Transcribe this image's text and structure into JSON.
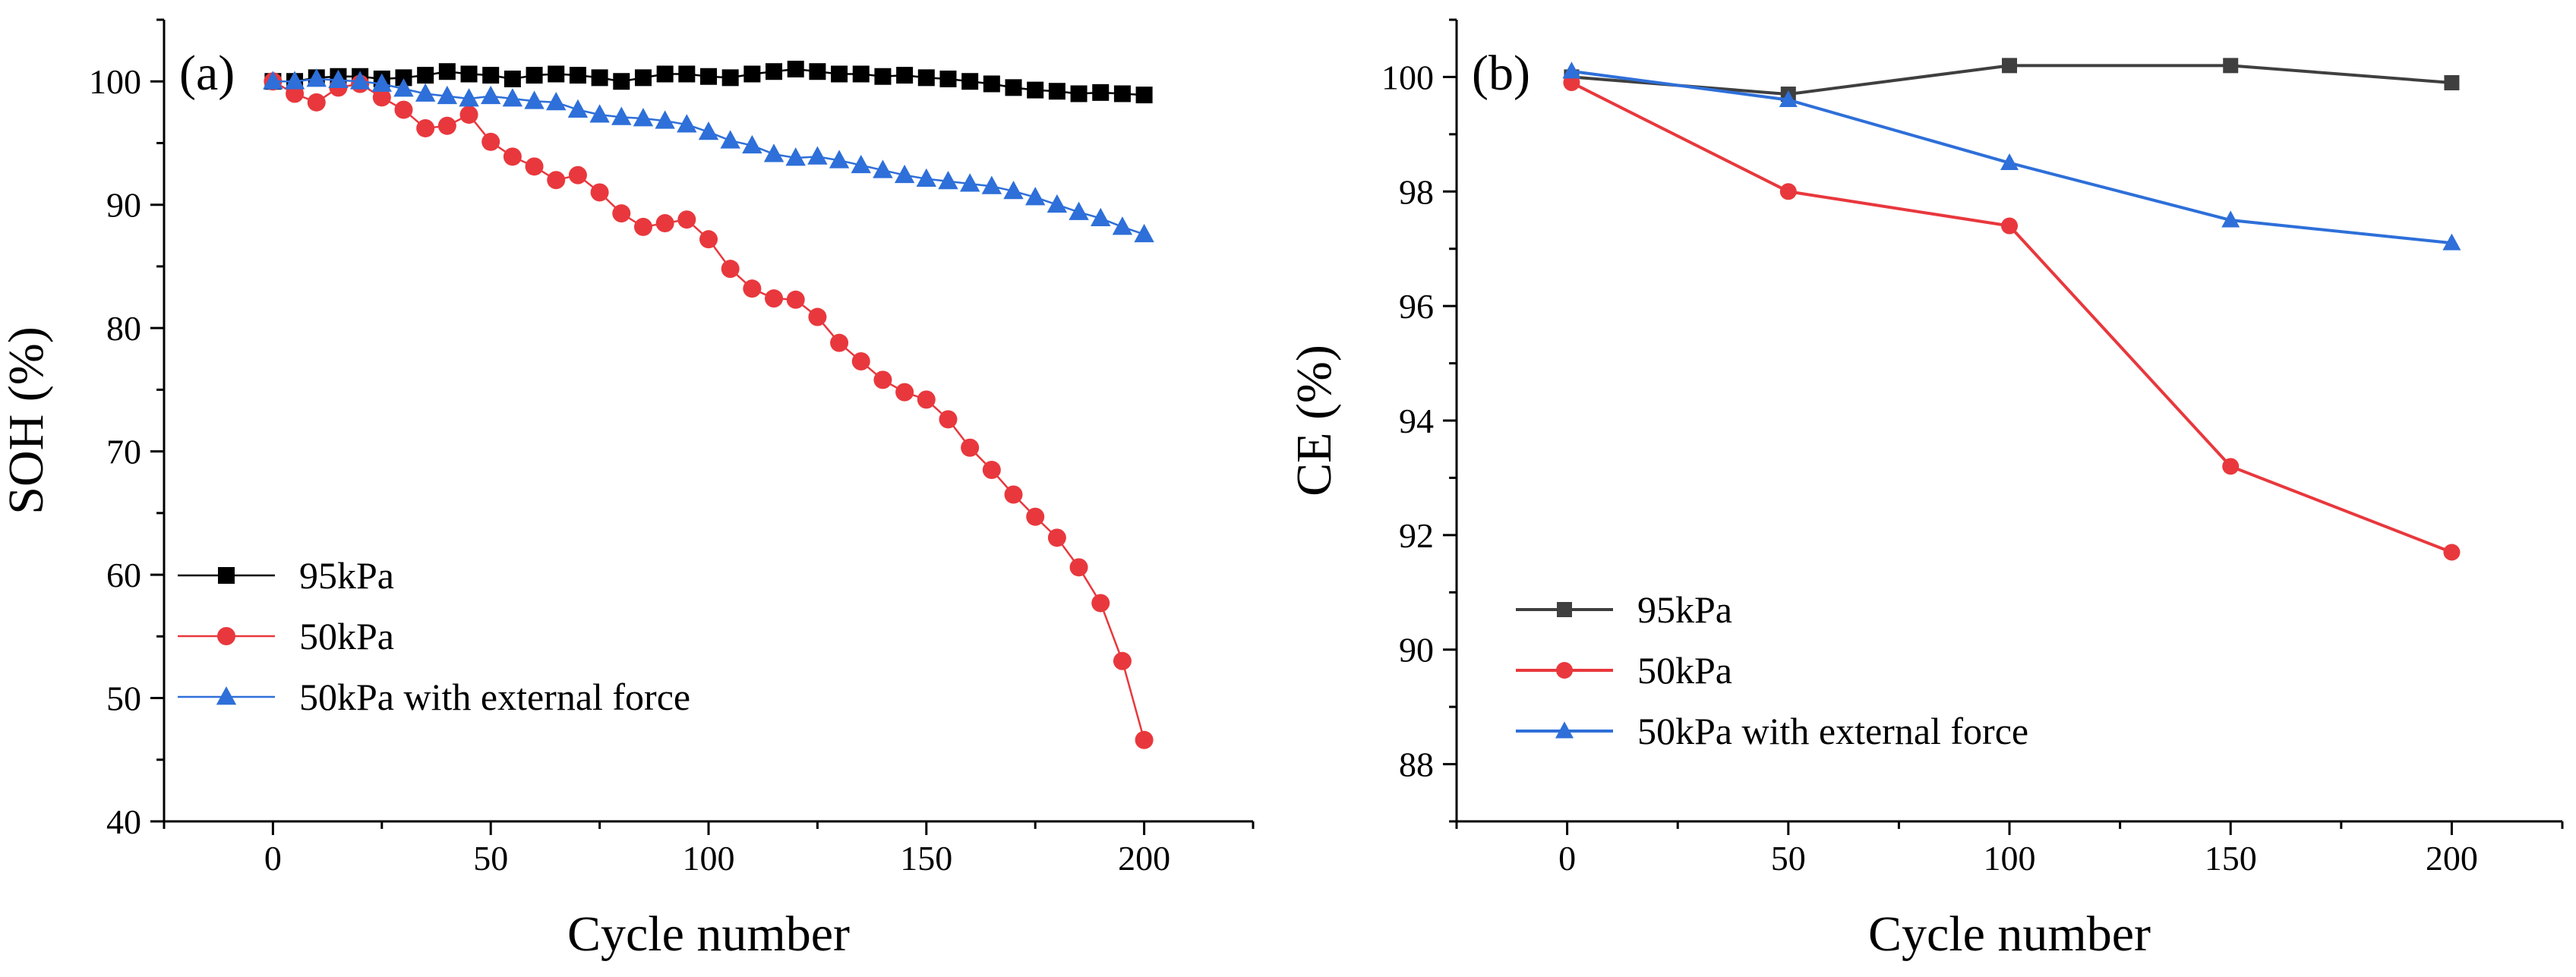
{
  "chart_data": [
    {
      "type": "line",
      "panel_label": "(a)",
      "title": "",
      "xlabel": "Cycle number",
      "ylabel": "SOH (%)",
      "xlim": [
        -25,
        225
      ],
      "ylim": [
        40,
        105
      ],
      "xticks": [
        0,
        50,
        100,
        150,
        200
      ],
      "yticks": [
        40,
        50,
        60,
        70,
        80,
        90,
        100
      ],
      "grid": false,
      "legend_position": "bottom-left",
      "series": [
        {
          "name": "95kPa",
          "color": "#000000",
          "marker": "square",
          "x": [
            0,
            5,
            10,
            15,
            20,
            25,
            30,
            35,
            40,
            45,
            50,
            55,
            60,
            65,
            70,
            75,
            80,
            85,
            90,
            95,
            100,
            105,
            110,
            115,
            120,
            125,
            130,
            135,
            140,
            145,
            150,
            155,
            160,
            165,
            170,
            175,
            180,
            185,
            190,
            195,
            200
          ],
          "y": [
            100,
            100,
            100.3,
            100.4,
            100.4,
            100.2,
            100.3,
            100.5,
            100.8,
            100.6,
            100.5,
            100.2,
            100.5,
            100.6,
            100.5,
            100.3,
            100.0,
            100.3,
            100.6,
            100.6,
            100.4,
            100.3,
            100.6,
            100.8,
            101.0,
            100.8,
            100.6,
            100.6,
            100.4,
            100.5,
            100.3,
            100.2,
            100.0,
            99.8,
            99.5,
            99.3,
            99.2,
            99.0,
            99.1,
            99.0,
            98.9
          ]
        },
        {
          "name": "50kPa",
          "color": "#e8383d",
          "marker": "circle",
          "x": [
            0,
            5,
            10,
            15,
            20,
            25,
            30,
            35,
            40,
            45,
            50,
            55,
            60,
            65,
            70,
            75,
            80,
            85,
            90,
            95,
            100,
            105,
            110,
            115,
            120,
            125,
            130,
            135,
            140,
            145,
            150,
            155,
            160,
            165,
            170,
            175,
            180,
            185,
            190,
            195,
            200
          ],
          "y": [
            100,
            99.0,
            98.3,
            99.5,
            99.8,
            98.7,
            97.7,
            96.2,
            96.4,
            97.3,
            95.1,
            93.9,
            93.1,
            92.0,
            92.4,
            91.0,
            89.3,
            88.2,
            88.5,
            88.8,
            87.2,
            84.8,
            83.2,
            82.4,
            82.3,
            80.9,
            78.8,
            77.3,
            75.8,
            74.8,
            74.2,
            72.6,
            70.3,
            68.5,
            66.5,
            64.7,
            63.0,
            60.6,
            57.7,
            53.0,
            46.6
          ]
        },
        {
          "name": "50kPa with external force",
          "color": "#2e6fd9",
          "marker": "triangle",
          "x": [
            0,
            5,
            10,
            15,
            20,
            25,
            30,
            35,
            40,
            45,
            50,
            55,
            60,
            65,
            70,
            75,
            80,
            85,
            90,
            95,
            100,
            105,
            110,
            115,
            120,
            125,
            130,
            135,
            140,
            145,
            150,
            155,
            160,
            165,
            170,
            175,
            180,
            185,
            190,
            195,
            200
          ],
          "y": [
            100,
            100,
            100.2,
            100.1,
            100.0,
            99.8,
            99.4,
            99.0,
            98.8,
            98.6,
            98.8,
            98.6,
            98.4,
            98.3,
            97.7,
            97.3,
            97.1,
            97.0,
            96.8,
            96.5,
            95.9,
            95.2,
            94.8,
            94.1,
            93.8,
            93.9,
            93.6,
            93.2,
            92.8,
            92.4,
            92.1,
            91.9,
            91.7,
            91.5,
            91.1,
            90.6,
            90.0,
            89.4,
            88.9,
            88.2,
            87.6
          ]
        }
      ],
      "x_tick_labels": [
        "0",
        "50",
        "100",
        "150",
        "200"
      ],
      "y_tick_labels": [
        "40",
        "50",
        "60",
        "70",
        "80",
        "90",
        "100"
      ]
    },
    {
      "type": "line",
      "panel_label": "(b)",
      "title": "",
      "xlabel": "Cycle number",
      "ylabel": "CE (%)",
      "xlim": [
        -25,
        225
      ],
      "ylim": [
        87,
        101
      ],
      "xticks": [
        0,
        50,
        100,
        150,
        200
      ],
      "yticks": [
        88,
        90,
        92,
        94,
        96,
        98,
        100
      ],
      "grid": false,
      "legend_position": "bottom-left",
      "series": [
        {
          "name": "95kPa",
          "color": "#3f3f3f",
          "marker": "square",
          "x": [
            1,
            50,
            100,
            150,
            200
          ],
          "y": [
            100.0,
            99.7,
            100.2,
            100.2,
            99.9
          ]
        },
        {
          "name": "50kPa",
          "color": "#e8383d",
          "marker": "circle",
          "x": [
            1,
            50,
            100,
            150,
            200
          ],
          "y": [
            99.9,
            98.0,
            97.4,
            93.2,
            91.7
          ]
        },
        {
          "name": "50kPa with external force",
          "color": "#2e6fd9",
          "marker": "triangle",
          "x": [
            1,
            50,
            100,
            150,
            200
          ],
          "y": [
            100.1,
            99.6,
            98.5,
            97.5,
            97.1
          ]
        }
      ],
      "x_tick_labels": [
        "0",
        "50",
        "100",
        "150",
        "200"
      ],
      "y_tick_labels": [
        "88",
        "90",
        "92",
        "94",
        "96",
        "98",
        "100"
      ]
    }
  ]
}
